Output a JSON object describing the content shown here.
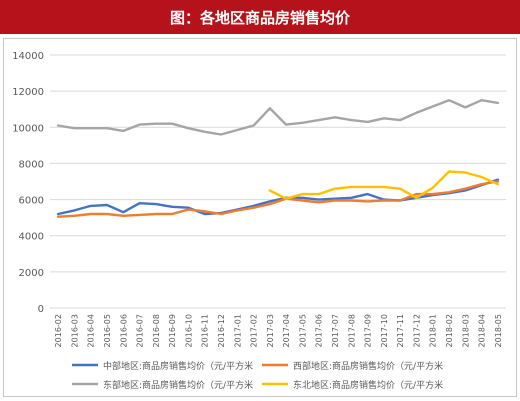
{
  "title": "图：各地区商品房销售均价",
  "chart_data": {
    "type": "line",
    "x": [
      "2016-02",
      "2016-03",
      "2016-04",
      "2016-05",
      "2016-06",
      "2016-07",
      "2016-08",
      "2016-09",
      "2016-10",
      "2016-11",
      "2016-12",
      "2017-01",
      "2017-02",
      "2017-03",
      "2017-04",
      "2017-05",
      "2017-06",
      "2017-07",
      "2017-08",
      "2017-09",
      "2017-10",
      "2017-11",
      "2017-12",
      "2018-01",
      "2018-02",
      "2018-03",
      "2018-04",
      "2018-05"
    ],
    "ylim": [
      0,
      14000
    ],
    "yticks": [
      0,
      2000,
      4000,
      6000,
      8000,
      10000,
      12000,
      14000
    ],
    "grid": true,
    "legend_position": "bottom",
    "series": [
      {
        "name": "中部地区:商品房销售均价（元/平方米",
        "color": "#4472c4",
        "values": [
          5200,
          5400,
          5650,
          5700,
          5300,
          5800,
          5750,
          5600,
          5550,
          5200,
          5250,
          5450,
          5650,
          5900,
          6100,
          6100,
          6000,
          6050,
          6100,
          6300,
          6000,
          5950,
          6100,
          6250,
          6350,
          6500,
          6800,
          7100
        ]
      },
      {
        "name": "西部地区:商品房销售均价（元/平方米",
        "color": "#ed7d31",
        "values": [
          5050,
          5100,
          5200,
          5200,
          5100,
          5150,
          5200,
          5200,
          5450,
          5350,
          5200,
          5400,
          5550,
          5750,
          6050,
          5950,
          5850,
          5950,
          5950,
          5900,
          5950,
          5950,
          6300,
          6300,
          6400,
          6600,
          6850,
          7000
        ]
      },
      {
        "name": "东部地区:商品房销售均价（元/平方米",
        "color": "#a5a5a5",
        "values": [
          10100,
          9950,
          9950,
          9950,
          9800,
          10150,
          10200,
          10200,
          9950,
          9750,
          9600,
          9850,
          10100,
          11050,
          10150,
          10250,
          10400,
          10550,
          10400,
          10300,
          10500,
          10400,
          10800,
          11150,
          11500,
          11100,
          11500,
          11350
        ]
      },
      {
        "name": "东北地区:商品房销售均价（元/平方米",
        "color": "#ffc000",
        "values": [
          null,
          null,
          null,
          null,
          null,
          null,
          null,
          null,
          null,
          null,
          null,
          null,
          null,
          6500,
          6050,
          6300,
          6300,
          6600,
          6700,
          6700,
          6700,
          6600,
          6100,
          6650,
          7550,
          7500,
          7250,
          6850
        ]
      }
    ]
  }
}
